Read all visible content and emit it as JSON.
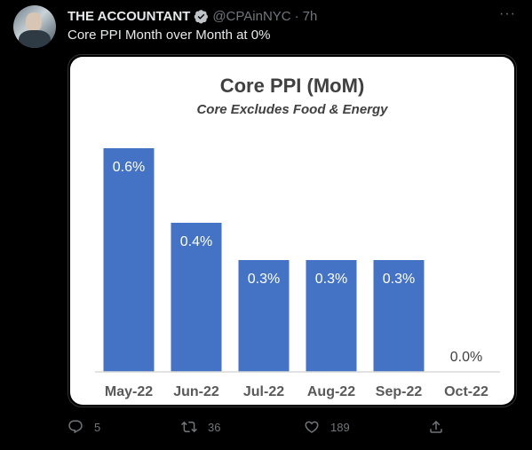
{
  "tweet": {
    "author_name": "THE ACCOUNTANT",
    "handle": "@CPAinNYC",
    "separator": "·",
    "time": "7h",
    "more": "···",
    "text": "Core PPI Month over Month at 0%"
  },
  "actions": {
    "replies": "5",
    "retweets": "36",
    "likes": "189"
  },
  "colors": {
    "bar": "#4472c4",
    "background": "#000000",
    "muted": "#71767b"
  },
  "chart_data": {
    "type": "bar",
    "title": "Core PPI (MoM)",
    "subtitle": "Core Excludes Food & Energy",
    "categories": [
      "May-22",
      "Jun-22",
      "Jul-22",
      "Aug-22",
      "Sep-22",
      "Oct-22"
    ],
    "values": [
      0.6,
      0.4,
      0.3,
      0.3,
      0.3,
      0.0
    ],
    "data_labels": [
      "0.6%",
      "0.4%",
      "0.3%",
      "0.3%",
      "0.3%",
      "0.0%"
    ],
    "ylim": [
      0,
      0.6
    ],
    "grid": false,
    "legend": "none"
  }
}
